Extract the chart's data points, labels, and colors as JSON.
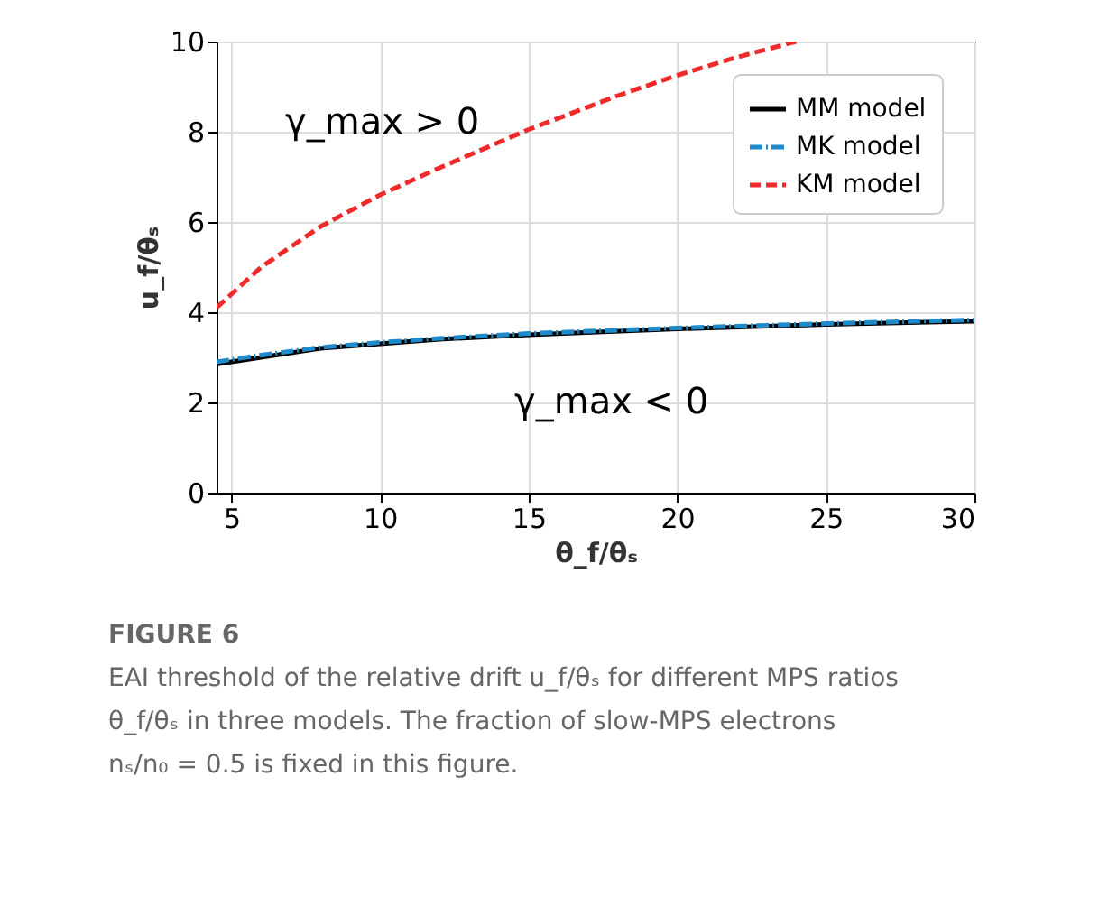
{
  "chart_data": {
    "type": "line",
    "xlabel": "θ_f/θₛ",
    "ylabel": "u_f/θₛ",
    "xlim": [
      4.5,
      30
    ],
    "ylim": [
      0,
      10
    ],
    "xticks": [
      5,
      10,
      15,
      20,
      25,
      30
    ],
    "yticks": [
      0,
      2,
      4,
      6,
      8,
      10
    ],
    "grid": true,
    "legend": "top right",
    "marker": "none",
    "series": [
      {
        "name": "MM model",
        "color": "#000000",
        "line_style": "solid",
        "x": [
          4.5,
          6,
          8,
          10,
          12,
          15,
          20,
          25,
          30
        ],
        "values": [
          2.85,
          3.0,
          3.2,
          3.3,
          3.4,
          3.5,
          3.63,
          3.73,
          3.8
        ]
      },
      {
        "name": "MK model",
        "color": "#1f8ac9",
        "line_style": "dashdot",
        "x": [
          4.5,
          6,
          8,
          10,
          12,
          15,
          20,
          25,
          30
        ],
        "values": [
          2.9,
          3.05,
          3.22,
          3.33,
          3.42,
          3.53,
          3.65,
          3.75,
          3.83
        ]
      },
      {
        "name": "KM model",
        "color": "#ee2a2a",
        "line_style": "dashed",
        "x": [
          4.5,
          5,
          6,
          8,
          10,
          12,
          15,
          18,
          20,
          22,
          24
        ],
        "values": [
          4.1,
          4.4,
          5.0,
          5.9,
          6.6,
          7.2,
          8.05,
          8.8,
          9.25,
          9.65,
          10.0
        ]
      }
    ],
    "annotations": [
      "γ_max > 0",
      "γ_max < 0",
      "FIGURE 6",
      "EAI threshold of the relative drift u_f/θₛ for different MPS ratios",
      "θ_f/θₛ in three models. The fraction of slow-MPS electrons",
      "nₛ/n₀ = 0.5 is fixed in this figure."
    ]
  }
}
